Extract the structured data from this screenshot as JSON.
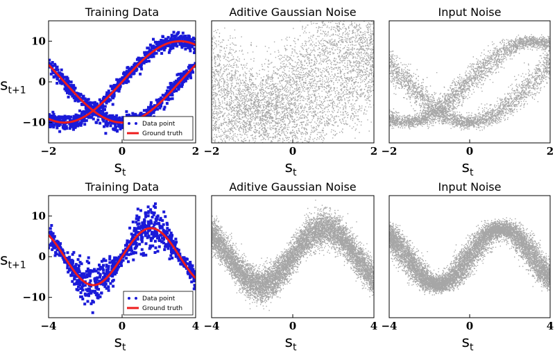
{
  "chart_data": [
    {
      "type": "scatter",
      "title": "Training Data",
      "xlabel": "s",
      "xlabel_sub": "t",
      "ylabel": "s",
      "ylabel_sub": "t+1",
      "xlim": [
        -2,
        2
      ],
      "ylim": [
        -15,
        15
      ],
      "xticks": [
        "−2",
        "0",
        "2"
      ],
      "yticks": [
        "10",
        "0",
        "−10"
      ],
      "series": [
        {
          "name": "Data point",
          "kind": "points",
          "color": "#1a1ad8",
          "description": "bimodal: s = 10 sin(s_t) and s = -10 cos(s_t) plus noise"
        },
        {
          "name": "Ground truth",
          "kind": "line",
          "color": "#ee1c1c",
          "curves": [
            "10*sin(x)",
            "-10*cos(x)"
          ]
        }
      ],
      "legend": {
        "placement": "lower-right",
        "items": [
          "Data point",
          "Ground truth"
        ]
      }
    },
    {
      "type": "scatter",
      "title": "Aditive Gaussian Noise",
      "xlabel": "s",
      "xlabel_sub": "t",
      "xlim": [
        -2,
        2
      ],
      "ylim": [
        -15,
        15
      ],
      "xticks": [
        "−2",
        "0",
        "2"
      ],
      "description": "dense black points spread around both branches"
    },
    {
      "type": "scatter",
      "title": "Input Noise",
      "xlabel": "s",
      "xlabel_sub": "t",
      "xlim": [
        -2,
        2
      ],
      "ylim": [
        -15,
        15
      ],
      "xticks": [
        "−2",
        "0",
        "2"
      ],
      "description": "two thick crossing sinusoidal bands"
    },
    {
      "type": "scatter",
      "title": "Training Data",
      "xlabel": "s",
      "xlabel_sub": "t",
      "ylabel": "s",
      "ylabel_sub": "t+1",
      "xlim": [
        -4,
        4
      ],
      "ylim": [
        -15,
        15
      ],
      "xticks": [
        "−4",
        "0",
        "4"
      ],
      "yticks": [
        "10",
        "0",
        "−10"
      ],
      "series": [
        {
          "name": "Data point",
          "kind": "points",
          "color": "#1a1ad8",
          "description": "unimodal: s = 7 sin(s_t) plus heteroscedastic noise"
        },
        {
          "name": "Ground truth",
          "kind": "line",
          "color": "#ee1c1c",
          "curves": [
            "7*sin(x)"
          ]
        }
      ],
      "legend": {
        "placement": "lower-right",
        "items": [
          "Data point",
          "Ground truth"
        ]
      }
    },
    {
      "type": "scatter",
      "title": "Aditive Gaussian Noise",
      "xlabel": "s",
      "xlabel_sub": "t",
      "xlim": [
        -4,
        4
      ],
      "ylim": [
        -15,
        15
      ],
      "xticks": [
        "−4",
        "0",
        "4"
      ],
      "description": "thick black sinusoidal band"
    },
    {
      "type": "scatter",
      "title": "Input Noise",
      "xlabel": "s",
      "xlabel_sub": "t",
      "xlim": [
        -4,
        4
      ],
      "ylim": [
        -15,
        15
      ],
      "xticks": [
        "−4",
        "0",
        "4"
      ],
      "description": "sinusoidal band, thicker where slope is steep"
    }
  ]
}
